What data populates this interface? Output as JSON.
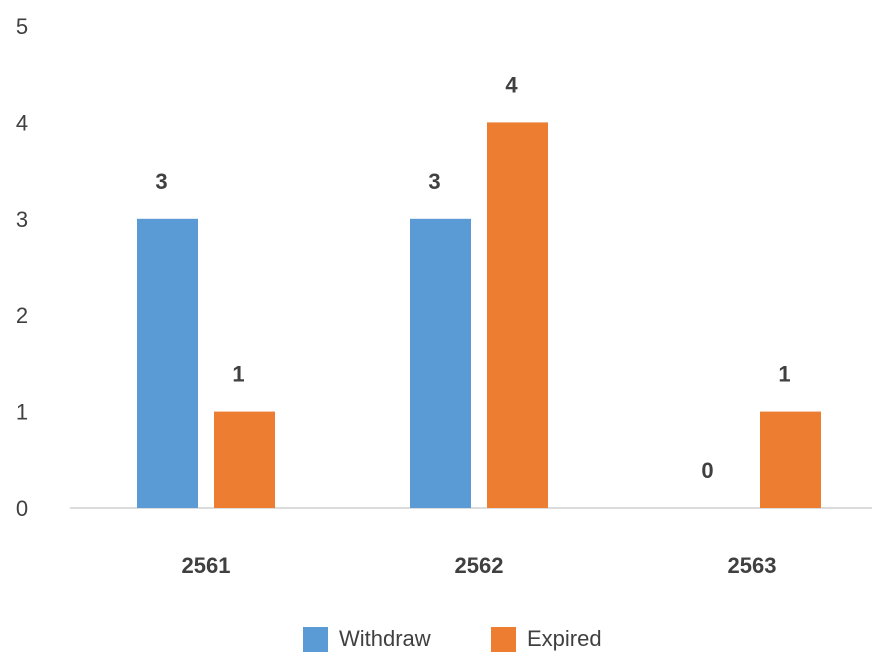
{
  "chart_data": {
    "type": "bar",
    "categories": [
      "2561",
      "2562",
      "2563"
    ],
    "series": [
      {
        "name": "Withdraw",
        "values": [
          3,
          3,
          0
        ],
        "color": "#5B9BD5"
      },
      {
        "name": "Expired",
        "values": [
          1,
          4,
          1
        ],
        "color": "#ED7D31"
      }
    ],
    "y_ticks": [
      "0",
      "1",
      "2",
      "3",
      "4",
      "5"
    ],
    "data_labels": [
      [
        "3",
        "3",
        "0"
      ],
      [
        "1",
        "4",
        "1"
      ]
    ],
    "title": "",
    "xlabel": "",
    "ylabel": "",
    "ylim": [
      0,
      5
    ],
    "grid": false,
    "legend_position": "bottom"
  }
}
